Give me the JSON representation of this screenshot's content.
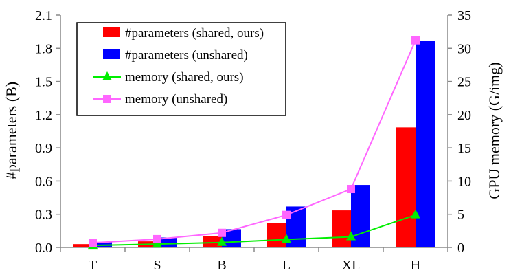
{
  "chart_data": {
    "type": "bar",
    "categories": [
      "T",
      "S",
      "B",
      "L",
      "XL",
      "H"
    ],
    "y_left": {
      "label": "#parameters (B)",
      "ylim": [
        0,
        2.1
      ],
      "ticks": [
        "0.0",
        "0.3",
        "0.6",
        "0.9",
        "1.2",
        "1.5",
        "1.8",
        "2.1"
      ]
    },
    "y_right": {
      "label": "GPU memory (G/img)",
      "ylim": [
        0,
        35
      ],
      "ticks": [
        "0",
        "5",
        "10",
        "15",
        "20",
        "25",
        "30",
        "35"
      ]
    },
    "series": [
      {
        "name": "#parameters (shared, ours)",
        "type": "bar",
        "axis": "left",
        "color": "#ff0000",
        "values": [
          0.03,
          0.055,
          0.1,
          0.22,
          0.335,
          1.085
        ]
      },
      {
        "name": "#parameters (unshared)",
        "type": "bar",
        "axis": "left",
        "color": "#0000ff",
        "values": [
          0.05,
          0.09,
          0.165,
          0.37,
          0.565,
          1.87
        ]
      },
      {
        "name": "memory (shared, ours)",
        "type": "line",
        "marker": "triangle",
        "axis": "right",
        "color": "#00ee00",
        "values": [
          0.3,
          0.5,
          0.75,
          1.2,
          1.6,
          4.9
        ]
      },
      {
        "name": "memory (unshared)",
        "type": "line",
        "marker": "square",
        "axis": "right",
        "color": "#ff66ff",
        "values": [
          0.7,
          1.25,
          2.2,
          4.9,
          8.8,
          31.2
        ]
      }
    ],
    "legend_position": "top-left",
    "grid": false
  }
}
